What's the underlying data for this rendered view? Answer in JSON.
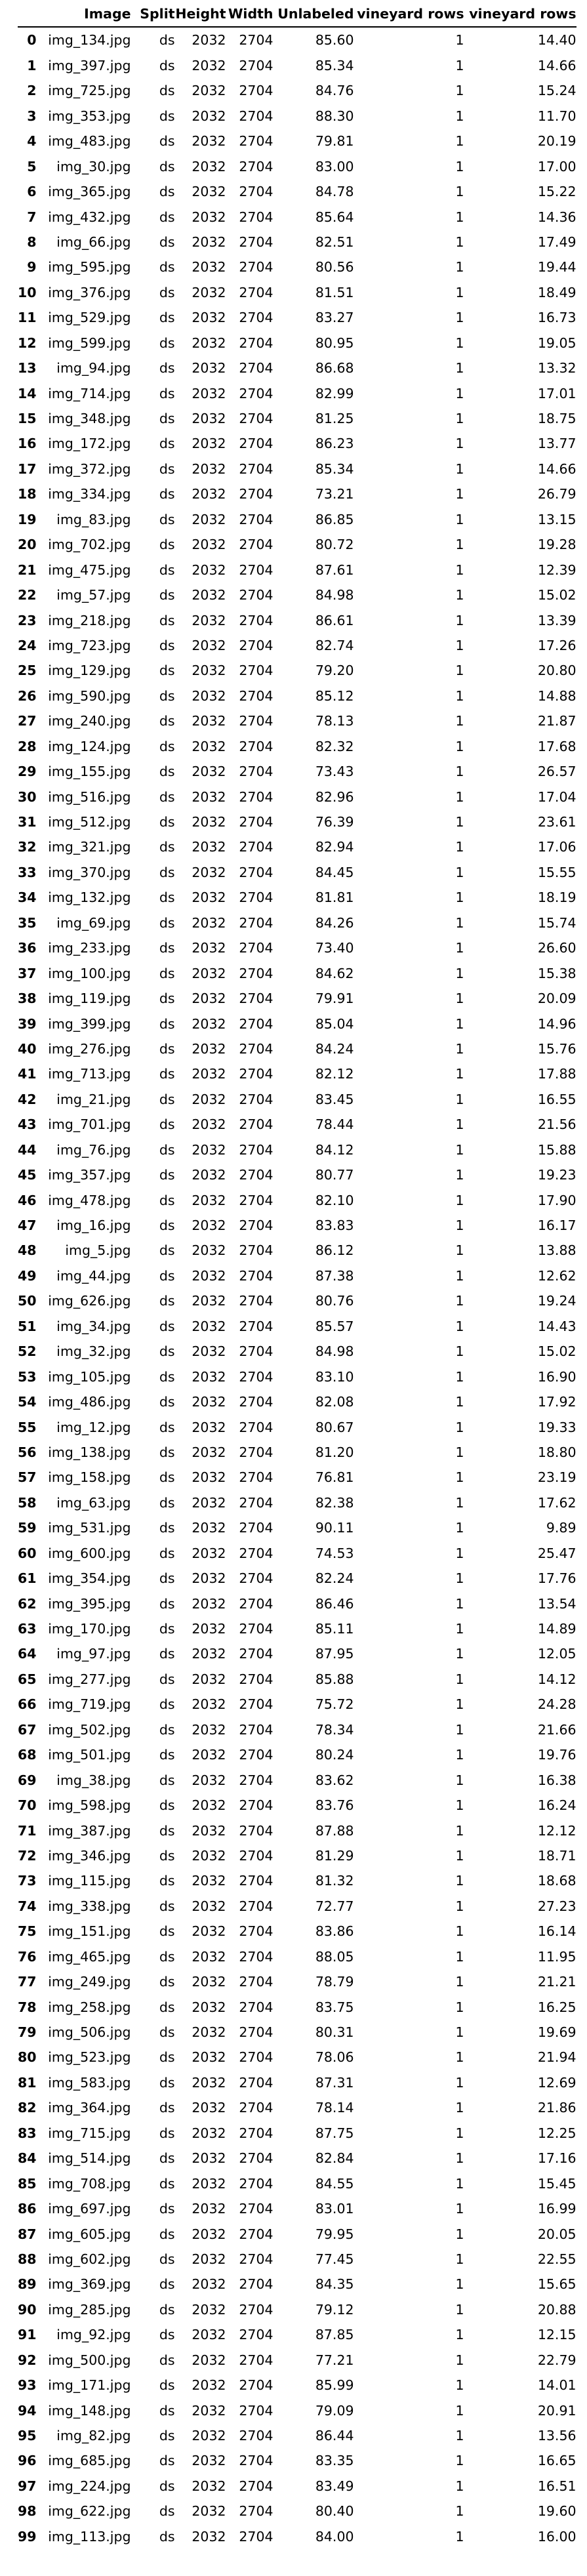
{
  "table": {
    "columns": [
      "",
      "Image",
      "Split",
      "Height",
      "Width",
      "Unlabeled",
      "vineyard rows",
      "vineyard rows"
    ],
    "rows": [
      [
        "0",
        "img_134.jpg",
        "ds",
        "2032",
        "2704",
        "85.60",
        "1",
        "14.40"
      ],
      [
        "1",
        "img_397.jpg",
        "ds",
        "2032",
        "2704",
        "85.34",
        "1",
        "14.66"
      ],
      [
        "2",
        "img_725.jpg",
        "ds",
        "2032",
        "2704",
        "84.76",
        "1",
        "15.24"
      ],
      [
        "3",
        "img_353.jpg",
        "ds",
        "2032",
        "2704",
        "88.30",
        "1",
        "11.70"
      ],
      [
        "4",
        "img_483.jpg",
        "ds",
        "2032",
        "2704",
        "79.81",
        "1",
        "20.19"
      ],
      [
        "5",
        "img_30.jpg",
        "ds",
        "2032",
        "2704",
        "83.00",
        "1",
        "17.00"
      ],
      [
        "6",
        "img_365.jpg",
        "ds",
        "2032",
        "2704",
        "84.78",
        "1",
        "15.22"
      ],
      [
        "7",
        "img_432.jpg",
        "ds",
        "2032",
        "2704",
        "85.64",
        "1",
        "14.36"
      ],
      [
        "8",
        "img_66.jpg",
        "ds",
        "2032",
        "2704",
        "82.51",
        "1",
        "17.49"
      ],
      [
        "9",
        "img_595.jpg",
        "ds",
        "2032",
        "2704",
        "80.56",
        "1",
        "19.44"
      ],
      [
        "10",
        "img_376.jpg",
        "ds",
        "2032",
        "2704",
        "81.51",
        "1",
        "18.49"
      ],
      [
        "11",
        "img_529.jpg",
        "ds",
        "2032",
        "2704",
        "83.27",
        "1",
        "16.73"
      ],
      [
        "12",
        "img_599.jpg",
        "ds",
        "2032",
        "2704",
        "80.95",
        "1",
        "19.05"
      ],
      [
        "13",
        "img_94.jpg",
        "ds",
        "2032",
        "2704",
        "86.68",
        "1",
        "13.32"
      ],
      [
        "14",
        "img_714.jpg",
        "ds",
        "2032",
        "2704",
        "82.99",
        "1",
        "17.01"
      ],
      [
        "15",
        "img_348.jpg",
        "ds",
        "2032",
        "2704",
        "81.25",
        "1",
        "18.75"
      ],
      [
        "16",
        "img_172.jpg",
        "ds",
        "2032",
        "2704",
        "86.23",
        "1",
        "13.77"
      ],
      [
        "17",
        "img_372.jpg",
        "ds",
        "2032",
        "2704",
        "85.34",
        "1",
        "14.66"
      ],
      [
        "18",
        "img_334.jpg",
        "ds",
        "2032",
        "2704",
        "73.21",
        "1",
        "26.79"
      ],
      [
        "19",
        "img_83.jpg",
        "ds",
        "2032",
        "2704",
        "86.85",
        "1",
        "13.15"
      ],
      [
        "20",
        "img_702.jpg",
        "ds",
        "2032",
        "2704",
        "80.72",
        "1",
        "19.28"
      ],
      [
        "21",
        "img_475.jpg",
        "ds",
        "2032",
        "2704",
        "87.61",
        "1",
        "12.39"
      ],
      [
        "22",
        "img_57.jpg",
        "ds",
        "2032",
        "2704",
        "84.98",
        "1",
        "15.02"
      ],
      [
        "23",
        "img_218.jpg",
        "ds",
        "2032",
        "2704",
        "86.61",
        "1",
        "13.39"
      ],
      [
        "24",
        "img_723.jpg",
        "ds",
        "2032",
        "2704",
        "82.74",
        "1",
        "17.26"
      ],
      [
        "25",
        "img_129.jpg",
        "ds",
        "2032",
        "2704",
        "79.20",
        "1",
        "20.80"
      ],
      [
        "26",
        "img_590.jpg",
        "ds",
        "2032",
        "2704",
        "85.12",
        "1",
        "14.88"
      ],
      [
        "27",
        "img_240.jpg",
        "ds",
        "2032",
        "2704",
        "78.13",
        "1",
        "21.87"
      ],
      [
        "28",
        "img_124.jpg",
        "ds",
        "2032",
        "2704",
        "82.32",
        "1",
        "17.68"
      ],
      [
        "29",
        "img_155.jpg",
        "ds",
        "2032",
        "2704",
        "73.43",
        "1",
        "26.57"
      ],
      [
        "30",
        "img_516.jpg",
        "ds",
        "2032",
        "2704",
        "82.96",
        "1",
        "17.04"
      ],
      [
        "31",
        "img_512.jpg",
        "ds",
        "2032",
        "2704",
        "76.39",
        "1",
        "23.61"
      ],
      [
        "32",
        "img_321.jpg",
        "ds",
        "2032",
        "2704",
        "82.94",
        "1",
        "17.06"
      ],
      [
        "33",
        "img_370.jpg",
        "ds",
        "2032",
        "2704",
        "84.45",
        "1",
        "15.55"
      ],
      [
        "34",
        "img_132.jpg",
        "ds",
        "2032",
        "2704",
        "81.81",
        "1",
        "18.19"
      ],
      [
        "35",
        "img_69.jpg",
        "ds",
        "2032",
        "2704",
        "84.26",
        "1",
        "15.74"
      ],
      [
        "36",
        "img_233.jpg",
        "ds",
        "2032",
        "2704",
        "73.40",
        "1",
        "26.60"
      ],
      [
        "37",
        "img_100.jpg",
        "ds",
        "2032",
        "2704",
        "84.62",
        "1",
        "15.38"
      ],
      [
        "38",
        "img_119.jpg",
        "ds",
        "2032",
        "2704",
        "79.91",
        "1",
        "20.09"
      ],
      [
        "39",
        "img_399.jpg",
        "ds",
        "2032",
        "2704",
        "85.04",
        "1",
        "14.96"
      ],
      [
        "40",
        "img_276.jpg",
        "ds",
        "2032",
        "2704",
        "84.24",
        "1",
        "15.76"
      ],
      [
        "41",
        "img_713.jpg",
        "ds",
        "2032",
        "2704",
        "82.12",
        "1",
        "17.88"
      ],
      [
        "42",
        "img_21.jpg",
        "ds",
        "2032",
        "2704",
        "83.45",
        "1",
        "16.55"
      ],
      [
        "43",
        "img_701.jpg",
        "ds",
        "2032",
        "2704",
        "78.44",
        "1",
        "21.56"
      ],
      [
        "44",
        "img_76.jpg",
        "ds",
        "2032",
        "2704",
        "84.12",
        "1",
        "15.88"
      ],
      [
        "45",
        "img_357.jpg",
        "ds",
        "2032",
        "2704",
        "80.77",
        "1",
        "19.23"
      ],
      [
        "46",
        "img_478.jpg",
        "ds",
        "2032",
        "2704",
        "82.10",
        "1",
        "17.90"
      ],
      [
        "47",
        "img_16.jpg",
        "ds",
        "2032",
        "2704",
        "83.83",
        "1",
        "16.17"
      ],
      [
        "48",
        "img_5.jpg",
        "ds",
        "2032",
        "2704",
        "86.12",
        "1",
        "13.88"
      ],
      [
        "49",
        "img_44.jpg",
        "ds",
        "2032",
        "2704",
        "87.38",
        "1",
        "12.62"
      ],
      [
        "50",
        "img_626.jpg",
        "ds",
        "2032",
        "2704",
        "80.76",
        "1",
        "19.24"
      ],
      [
        "51",
        "img_34.jpg",
        "ds",
        "2032",
        "2704",
        "85.57",
        "1",
        "14.43"
      ],
      [
        "52",
        "img_32.jpg",
        "ds",
        "2032",
        "2704",
        "84.98",
        "1",
        "15.02"
      ],
      [
        "53",
        "img_105.jpg",
        "ds",
        "2032",
        "2704",
        "83.10",
        "1",
        "16.90"
      ],
      [
        "54",
        "img_486.jpg",
        "ds",
        "2032",
        "2704",
        "82.08",
        "1",
        "17.92"
      ],
      [
        "55",
        "img_12.jpg",
        "ds",
        "2032",
        "2704",
        "80.67",
        "1",
        "19.33"
      ],
      [
        "56",
        "img_138.jpg",
        "ds",
        "2032",
        "2704",
        "81.20",
        "1",
        "18.80"
      ],
      [
        "57",
        "img_158.jpg",
        "ds",
        "2032",
        "2704",
        "76.81",
        "1",
        "23.19"
      ],
      [
        "58",
        "img_63.jpg",
        "ds",
        "2032",
        "2704",
        "82.38",
        "1",
        "17.62"
      ],
      [
        "59",
        "img_531.jpg",
        "ds",
        "2032",
        "2704",
        "90.11",
        "1",
        "9.89"
      ],
      [
        "60",
        "img_600.jpg",
        "ds",
        "2032",
        "2704",
        "74.53",
        "1",
        "25.47"
      ],
      [
        "61",
        "img_354.jpg",
        "ds",
        "2032",
        "2704",
        "82.24",
        "1",
        "17.76"
      ],
      [
        "62",
        "img_395.jpg",
        "ds",
        "2032",
        "2704",
        "86.46",
        "1",
        "13.54"
      ],
      [
        "63",
        "img_170.jpg",
        "ds",
        "2032",
        "2704",
        "85.11",
        "1",
        "14.89"
      ],
      [
        "64",
        "img_97.jpg",
        "ds",
        "2032",
        "2704",
        "87.95",
        "1",
        "12.05"
      ],
      [
        "65",
        "img_277.jpg",
        "ds",
        "2032",
        "2704",
        "85.88",
        "1",
        "14.12"
      ],
      [
        "66",
        "img_719.jpg",
        "ds",
        "2032",
        "2704",
        "75.72",
        "1",
        "24.28"
      ],
      [
        "67",
        "img_502.jpg",
        "ds",
        "2032",
        "2704",
        "78.34",
        "1",
        "21.66"
      ],
      [
        "68",
        "img_501.jpg",
        "ds",
        "2032",
        "2704",
        "80.24",
        "1",
        "19.76"
      ],
      [
        "69",
        "img_38.jpg",
        "ds",
        "2032",
        "2704",
        "83.62",
        "1",
        "16.38"
      ],
      [
        "70",
        "img_598.jpg",
        "ds",
        "2032",
        "2704",
        "83.76",
        "1",
        "16.24"
      ],
      [
        "71",
        "img_387.jpg",
        "ds",
        "2032",
        "2704",
        "87.88",
        "1",
        "12.12"
      ],
      [
        "72",
        "img_346.jpg",
        "ds",
        "2032",
        "2704",
        "81.29",
        "1",
        "18.71"
      ],
      [
        "73",
        "img_115.jpg",
        "ds",
        "2032",
        "2704",
        "81.32",
        "1",
        "18.68"
      ],
      [
        "74",
        "img_338.jpg",
        "ds",
        "2032",
        "2704",
        "72.77",
        "1",
        "27.23"
      ],
      [
        "75",
        "img_151.jpg",
        "ds",
        "2032",
        "2704",
        "83.86",
        "1",
        "16.14"
      ],
      [
        "76",
        "img_465.jpg",
        "ds",
        "2032",
        "2704",
        "88.05",
        "1",
        "11.95"
      ],
      [
        "77",
        "img_249.jpg",
        "ds",
        "2032",
        "2704",
        "78.79",
        "1",
        "21.21"
      ],
      [
        "78",
        "img_258.jpg",
        "ds",
        "2032",
        "2704",
        "83.75",
        "1",
        "16.25"
      ],
      [
        "79",
        "img_506.jpg",
        "ds",
        "2032",
        "2704",
        "80.31",
        "1",
        "19.69"
      ],
      [
        "80",
        "img_523.jpg",
        "ds",
        "2032",
        "2704",
        "78.06",
        "1",
        "21.94"
      ],
      [
        "81",
        "img_583.jpg",
        "ds",
        "2032",
        "2704",
        "87.31",
        "1",
        "12.69"
      ],
      [
        "82",
        "img_364.jpg",
        "ds",
        "2032",
        "2704",
        "78.14",
        "1",
        "21.86"
      ],
      [
        "83",
        "img_715.jpg",
        "ds",
        "2032",
        "2704",
        "87.75",
        "1",
        "12.25"
      ],
      [
        "84",
        "img_514.jpg",
        "ds",
        "2032",
        "2704",
        "82.84",
        "1",
        "17.16"
      ],
      [
        "85",
        "img_708.jpg",
        "ds",
        "2032",
        "2704",
        "84.55",
        "1",
        "15.45"
      ],
      [
        "86",
        "img_697.jpg",
        "ds",
        "2032",
        "2704",
        "83.01",
        "1",
        "16.99"
      ],
      [
        "87",
        "img_605.jpg",
        "ds",
        "2032",
        "2704",
        "79.95",
        "1",
        "20.05"
      ],
      [
        "88",
        "img_602.jpg",
        "ds",
        "2032",
        "2704",
        "77.45",
        "1",
        "22.55"
      ],
      [
        "89",
        "img_369.jpg",
        "ds",
        "2032",
        "2704",
        "84.35",
        "1",
        "15.65"
      ],
      [
        "90",
        "img_285.jpg",
        "ds",
        "2032",
        "2704",
        "79.12",
        "1",
        "20.88"
      ],
      [
        "91",
        "img_92.jpg",
        "ds",
        "2032",
        "2704",
        "87.85",
        "1",
        "12.15"
      ],
      [
        "92",
        "img_500.jpg",
        "ds",
        "2032",
        "2704",
        "77.21",
        "1",
        "22.79"
      ],
      [
        "93",
        "img_171.jpg",
        "ds",
        "2032",
        "2704",
        "85.99",
        "1",
        "14.01"
      ],
      [
        "94",
        "img_148.jpg",
        "ds",
        "2032",
        "2704",
        "79.09",
        "1",
        "20.91"
      ],
      [
        "95",
        "img_82.jpg",
        "ds",
        "2032",
        "2704",
        "86.44",
        "1",
        "13.56"
      ],
      [
        "96",
        "img_685.jpg",
        "ds",
        "2032",
        "2704",
        "83.35",
        "1",
        "16.65"
      ],
      [
        "97",
        "img_224.jpg",
        "ds",
        "2032",
        "2704",
        "83.49",
        "1",
        "16.51"
      ],
      [
        "98",
        "img_622.jpg",
        "ds",
        "2032",
        "2704",
        "80.40",
        "1",
        "19.60"
      ],
      [
        "99",
        "img_113.jpg",
        "ds",
        "2032",
        "2704",
        "84.00",
        "1",
        "16.00"
      ]
    ]
  }
}
